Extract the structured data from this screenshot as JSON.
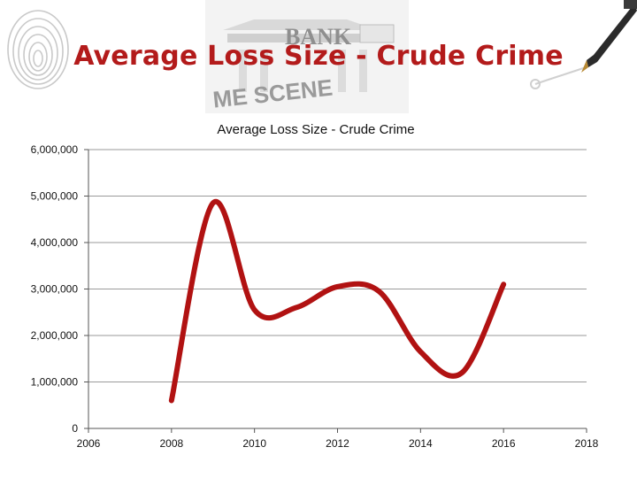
{
  "slide": {
    "title": "Average Loss Size - Crude Crime",
    "banner_text_bank": "BANK",
    "banner_text_scene": "ME SCENE"
  },
  "colors": {
    "title": "#b31b1b",
    "line": "#b11212",
    "grid": "#9a9a9a"
  },
  "chart_data": {
    "type": "line",
    "title": "Average Loss Size - Crude Crime",
    "xlim": [
      2006,
      2018
    ],
    "ylim": [
      0,
      6000000
    ],
    "x_ticks": [
      "2006",
      "2008",
      "2010",
      "2012",
      "2014",
      "2016",
      "2018"
    ],
    "y_ticks": [
      "0",
      "1,000,000",
      "2,000,000",
      "3,000,000",
      "4,000,000",
      "5,000,000",
      "6,000,000"
    ],
    "grid": true,
    "smooth": true,
    "series": [
      {
        "x": [
          2008,
          2009,
          2010,
          2011,
          2012,
          2013,
          2014,
          2015,
          2016
        ],
        "values": [
          600000,
          4850000,
          2550000,
          2600000,
          3050000,
          2950000,
          1650000,
          1200000,
          3100000
        ]
      }
    ]
  }
}
